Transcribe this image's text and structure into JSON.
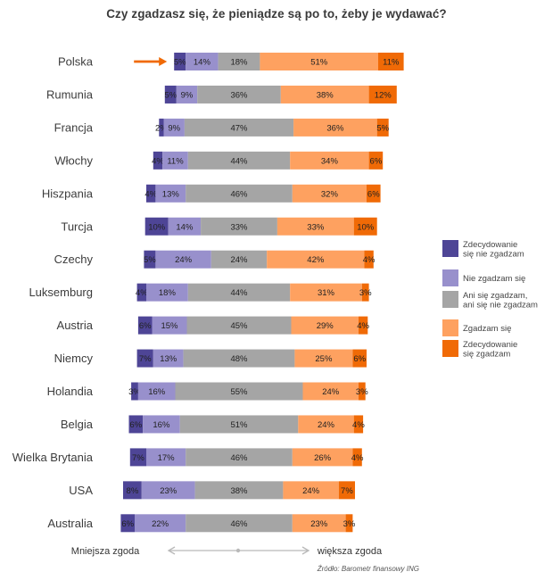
{
  "chart_data": {
    "type": "stacked-bar-diverging",
    "title": "Czy zgadzasz się, że pieniądze są po to, żeby je wydawać?",
    "series": [
      {
        "name": "Zdecydowanie się nie zgadzam",
        "color": "#4e4596"
      },
      {
        "name": "Nie zgadzam się",
        "color": "#9890cc"
      },
      {
        "name": "Ani się zgadzam, ani się nie zgadzam",
        "color": "#a5a5a5"
      },
      {
        "name": "Zgadzam się",
        "color": "#fea160"
      },
      {
        "name": "Zdecydowanie się zgadzam",
        "color": "#f06a06"
      }
    ],
    "rows": [
      {
        "country": "Polska",
        "values": [
          5,
          14,
          18,
          51,
          11
        ],
        "labels": [
          "5%",
          "14%",
          "18%",
          "51%",
          "11%"
        ],
        "highlight": true
      },
      {
        "country": "Rumunia",
        "values": [
          5,
          9,
          36,
          38,
          12
        ],
        "labels": [
          "5%",
          "9%",
          "36%",
          "38%",
          "12%"
        ]
      },
      {
        "country": "Francja",
        "values": [
          2,
          9,
          47,
          36,
          5
        ],
        "labels": [
          "2%",
          "9%",
          "47%",
          "36%",
          "5%"
        ]
      },
      {
        "country": "Włochy",
        "values": [
          4,
          11,
          44,
          34,
          6
        ],
        "labels": [
          "4%",
          "11%",
          "44%",
          "34%",
          "6%"
        ]
      },
      {
        "country": "Hiszpania",
        "values": [
          4,
          13,
          46,
          32,
          6
        ],
        "labels": [
          "4%",
          "13%",
          "46%",
          "32%",
          "6%"
        ]
      },
      {
        "country": "Turcja",
        "values": [
          10,
          14,
          33,
          33,
          10
        ],
        "labels": [
          "10%",
          "14%",
          "33%",
          "33%",
          "10%"
        ]
      },
      {
        "country": "Czechy",
        "values": [
          5,
          24,
          24,
          42,
          4
        ],
        "labels": [
          "5%",
          "24%",
          "24%",
          "42%",
          "4%"
        ]
      },
      {
        "country": "Luksemburg",
        "values": [
          4,
          18,
          44,
          31,
          3
        ],
        "labels": [
          "4%",
          "18%",
          "44%",
          "31%",
          "3%"
        ]
      },
      {
        "country": "Austria",
        "values": [
          6,
          15,
          45,
          29,
          4
        ],
        "labels": [
          "6%",
          "15%",
          "45%",
          "29%",
          "4%"
        ]
      },
      {
        "country": "Niemcy",
        "values": [
          7,
          13,
          48,
          25,
          6
        ],
        "labels": [
          "7%",
          "13%",
          "48%",
          "25%",
          "6%"
        ]
      },
      {
        "country": "Holandia",
        "values": [
          3,
          16,
          55,
          24,
          3
        ],
        "labels": [
          "3%",
          "16%",
          "55%",
          "24%",
          "3%"
        ]
      },
      {
        "country": "Belgia",
        "values": [
          6,
          16,
          51,
          24,
          4
        ],
        "labels": [
          "6%",
          "16%",
          "51%",
          "24%",
          "4%"
        ]
      },
      {
        "country": "Wielka Brytania",
        "values": [
          7,
          17,
          46,
          26,
          4
        ],
        "labels": [
          "7%",
          "17%",
          "46%",
          "26%",
          "4%"
        ]
      },
      {
        "country": "USA",
        "values": [
          8,
          23,
          38,
          24,
          7
        ],
        "labels": [
          "8%",
          "23%",
          "38%",
          "24%",
          "7%"
        ]
      },
      {
        "country": "Australia",
        "values": [
          6,
          22,
          46,
          23,
          3
        ],
        "labels": [
          "6%",
          "22%",
          "46%",
          "23%",
          "3%"
        ]
      }
    ],
    "legend": [
      [
        "Zdecydowanie",
        "się nie zgadzam"
      ],
      [
        "Nie zgadzam się"
      ],
      [
        "Ani się zgadzam,",
        "ani się nie zgadzam"
      ],
      [
        "Zgadzam się"
      ],
      [
        "Zdecydowanie",
        "się zgadzam"
      ]
    ],
    "legend_position": "right",
    "axis_left_label": "Mniejsza zgoda",
    "axis_right_label": "większa zgoda",
    "source": "Źródło: Barometr finansowy ING",
    "arrow_color": "#f06a06",
    "axis_color": "#b9b9b9"
  }
}
